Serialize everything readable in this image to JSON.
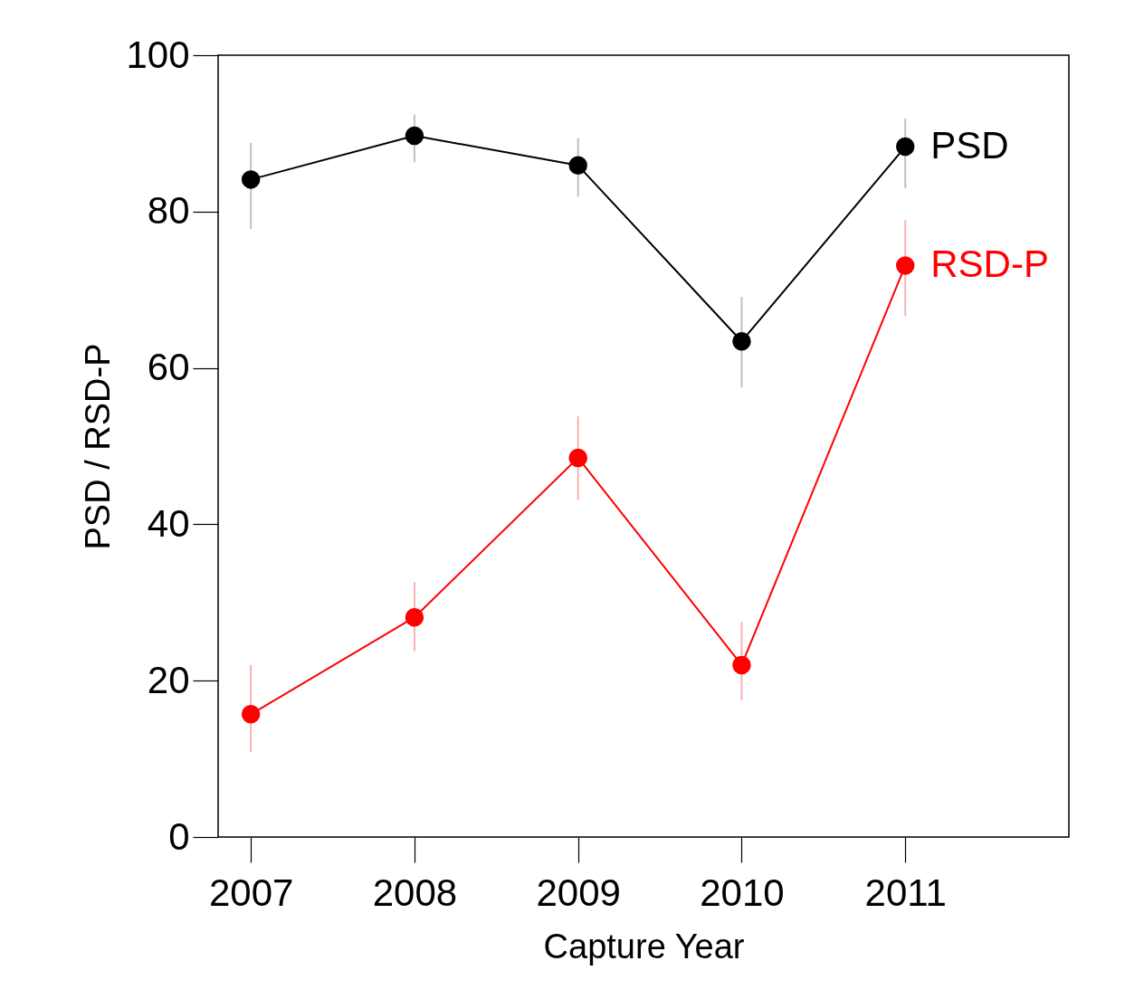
{
  "chart_data": {
    "type": "line",
    "xlabel": "Capture Year",
    "ylabel": "PSD / RSD-P",
    "x": [
      2007,
      2008,
      2009,
      2010,
      2011
    ],
    "xlim": [
      2006.8,
      2012
    ],
    "xticks": [
      2007,
      2008,
      2009,
      2010,
      2011
    ],
    "ylim": [
      0,
      100
    ],
    "yticks": [
      0,
      20,
      40,
      60,
      80,
      100
    ],
    "grid": false,
    "legend": false,
    "marker": "circle",
    "line_style": "solid",
    "series": [
      {
        "name": "PSD",
        "color": "#000000",
        "values": [
          84.1,
          89.7,
          85.9,
          63.4,
          88.3
        ],
        "errors": [
          [
            77.8,
            88.8
          ],
          [
            86.3,
            92.4
          ],
          [
            81.9,
            89.4
          ],
          [
            57.5,
            69.1
          ],
          [
            83.0,
            91.9
          ]
        ]
      },
      {
        "name": "RSD-P",
        "color": "#ff0000",
        "values": [
          15.7,
          28.1,
          48.5,
          22.0,
          73.1
        ],
        "errors": [
          [
            10.9,
            22.0
          ],
          [
            23.8,
            32.6
          ],
          [
            43.1,
            53.8
          ],
          [
            17.5,
            27.5
          ],
          [
            66.6,
            78.9
          ]
        ]
      }
    ]
  }
}
